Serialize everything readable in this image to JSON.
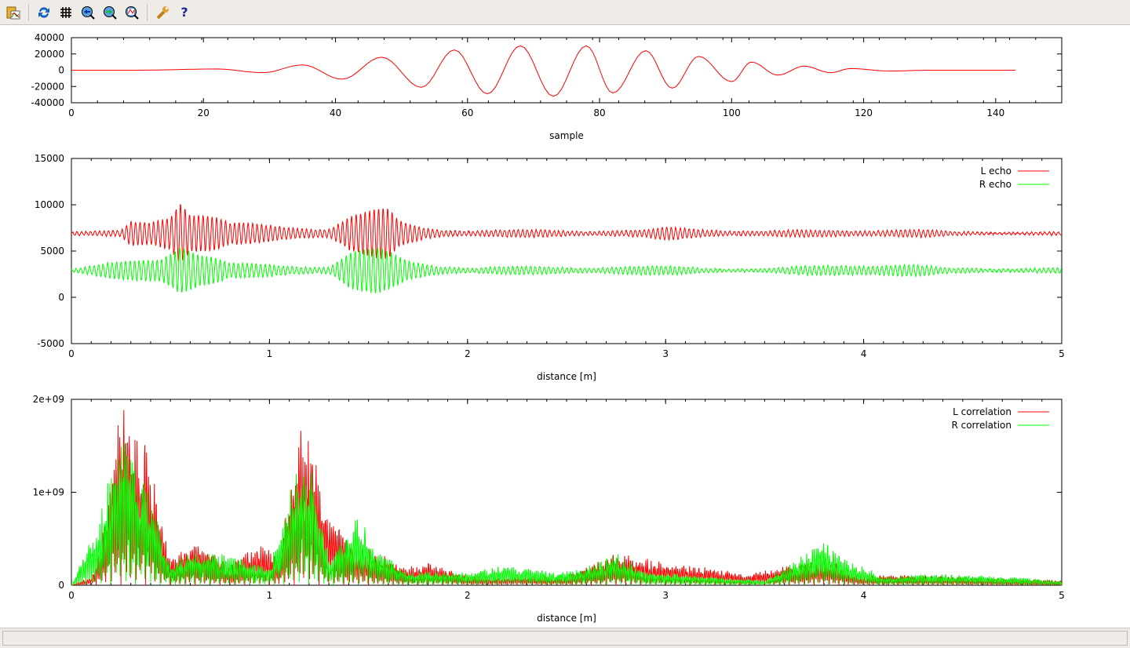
{
  "toolbar": {
    "icons": [
      "copy-to-clipboard-icon",
      "replot-icon",
      "grid-icon",
      "zoom-previous-icon",
      "zoom-next-icon",
      "autoscale-icon",
      "preferences-icon",
      "help-icon"
    ],
    "help_glyph": "?"
  },
  "colors": {
    "red": "#ff0000",
    "green": "#00ff00"
  },
  "chart_data": [
    {
      "type": "line",
      "xlabel": "sample",
      "ylabel": "",
      "xlim": [
        0,
        150
      ],
      "ylim": [
        -40000,
        40000
      ],
      "xticks": [
        "0",
        "20",
        "40",
        "60",
        "80",
        "100",
        "120",
        "140"
      ],
      "yticks": [
        "-40000",
        "-20000",
        "0",
        "20000",
        "40000"
      ],
      "series": [
        {
          "color": "#ff0000",
          "extrema": [
            [
              0,
              0
            ],
            [
              10,
              0
            ],
            [
              22,
              1500
            ],
            [
              29,
              -3000
            ],
            [
              35,
              6500
            ],
            [
              41,
              -11000
            ],
            [
              47,
              16000
            ],
            [
              53,
              -21000
            ],
            [
              58,
              25000
            ],
            [
              63,
              -29000
            ],
            [
              68,
              30000
            ],
            [
              73,
              -32000
            ],
            [
              78,
              30000
            ],
            [
              82,
              -28000
            ],
            [
              87,
              24000
            ],
            [
              91,
              -22000
            ],
            [
              95,
              17000
            ],
            [
              100,
              -14000
            ],
            [
              103,
              10000
            ],
            [
              107,
              -6000
            ],
            [
              111,
              5000
            ],
            [
              115,
              -3000
            ],
            [
              118,
              2000
            ],
            [
              124,
              -1000
            ],
            [
              130,
              0
            ],
            [
              143,
              0
            ]
          ]
        }
      ]
    },
    {
      "type": "line",
      "xlabel": "distance [m]",
      "ylabel": "",
      "xlim": [
        0,
        5
      ],
      "ylim": [
        -5000,
        15000
      ],
      "xticks": [
        "0",
        "1",
        "2",
        "3",
        "4",
        "5"
      ],
      "yticks": [
        "-5000",
        "0",
        "5000",
        "10000",
        "15000"
      ],
      "legend": "top-right",
      "series": [
        {
          "name": "L echo",
          "color": "#ff0000",
          "baseline": 6900,
          "envelope": [
            [
              0,
              200
            ],
            [
              0.25,
              300
            ],
            [
              0.3,
              1500
            ],
            [
              0.4,
              1800
            ],
            [
              0.5,
              3500
            ],
            [
              0.55,
              6500
            ],
            [
              0.6,
              3500
            ],
            [
              0.7,
              2500
            ],
            [
              0.8,
              1200
            ],
            [
              1.0,
              1000
            ],
            [
              1.3,
              800
            ],
            [
              1.4,
              2300
            ],
            [
              1.6,
              2800
            ],
            [
              1.65,
              1500
            ],
            [
              1.8,
              800
            ],
            [
              2.0,
              400
            ],
            [
              2.9,
              400
            ],
            [
              3.0,
              700
            ],
            [
              3.2,
              600
            ],
            [
              3.5,
              300
            ],
            [
              4.0,
              500
            ],
            [
              4.2,
              500
            ],
            [
              4.5,
              200
            ],
            [
              5,
              200
            ]
          ]
        },
        {
          "name": "R echo",
          "color": "#00ff00",
          "baseline": 2900,
          "envelope": [
            [
              0,
              150
            ],
            [
              0.3,
              1200
            ],
            [
              0.45,
              2000
            ],
            [
              0.55,
              5000
            ],
            [
              0.65,
              2500
            ],
            [
              0.8,
              800
            ],
            [
              1.3,
              600
            ],
            [
              1.4,
              2500
            ],
            [
              1.55,
              2500
            ],
            [
              1.7,
              1200
            ],
            [
              2.0,
              400
            ],
            [
              2.8,
              500
            ],
            [
              3.0,
              500
            ],
            [
              3.5,
              200
            ],
            [
              4.0,
              900
            ],
            [
              4.2,
              800
            ],
            [
              4.4,
              300
            ],
            [
              5,
              300
            ]
          ]
        }
      ]
    },
    {
      "type": "line",
      "xlabel": "distance [m]",
      "ylabel": "",
      "xlim": [
        0,
        5
      ],
      "ylim": [
        0,
        2000000000
      ],
      "xticks": [
        "0",
        "1",
        "2",
        "3",
        "4",
        "5"
      ],
      "yticks": [
        "0",
        "1e+09",
        "2e+09"
      ],
      "legend": "top-right",
      "series": [
        {
          "name": "L correlation",
          "color": "#ff0000",
          "envelope": [
            [
              0,
              0
            ],
            [
              0.1,
              100000000.0
            ],
            [
              0.15,
              500000000.0
            ],
            [
              0.22,
              1500000000.0
            ],
            [
              0.25,
              2000000000.0
            ],
            [
              0.3,
              2000000000.0
            ],
            [
              0.38,
              1500000000.0
            ],
            [
              0.45,
              800000000.0
            ],
            [
              0.5,
              300000000.0
            ],
            [
              0.6,
              500000000.0
            ],
            [
              0.7,
              400000000.0
            ],
            [
              0.8,
              200000000.0
            ],
            [
              0.95,
              500000000.0
            ],
            [
              1.05,
              300000000.0
            ],
            [
              1.15,
              1700000000.0
            ],
            [
              1.2,
              1700000000.0
            ],
            [
              1.3,
              800000000.0
            ],
            [
              1.4,
              500000000.0
            ],
            [
              1.5,
              400000000.0
            ],
            [
              1.7,
              200000000.0
            ],
            [
              1.8,
              250000000.0
            ],
            [
              2.0,
              100000000.0
            ],
            [
              2.5,
              100000000.0
            ],
            [
              2.75,
              350000000.0
            ],
            [
              3.0,
              250000000.0
            ],
            [
              3.2,
              200000000.0
            ],
            [
              3.4,
              120000000.0
            ],
            [
              3.8,
              300000000.0
            ],
            [
              4.0,
              100000000.0
            ],
            [
              4.1,
              120000000.0
            ],
            [
              5,
              50000000.0
            ]
          ]
        },
        {
          "name": "R correlation",
          "color": "#00ff00",
          "envelope": [
            [
              0,
              0
            ],
            [
              0.15,
              800000000.0
            ],
            [
              0.25,
              1800000000.0
            ],
            [
              0.32,
              1400000000.0
            ],
            [
              0.4,
              1000000000.0
            ],
            [
              0.5,
              200000000.0
            ],
            [
              0.6,
              400000000.0
            ],
            [
              0.85,
              300000000.0
            ],
            [
              1.0,
              200000000.0
            ],
            [
              1.15,
              1400000000.0
            ],
            [
              1.22,
              1200000000.0
            ],
            [
              1.3,
              300000000.0
            ],
            [
              1.45,
              750000000.0
            ],
            [
              1.55,
              400000000.0
            ],
            [
              1.7,
              150000000.0
            ],
            [
              2.0,
              150000000.0
            ],
            [
              2.2,
              220000000.0
            ],
            [
              2.45,
              150000000.0
            ],
            [
              2.6,
              200000000.0
            ],
            [
              2.75,
              350000000.0
            ],
            [
              2.9,
              150000000.0
            ],
            [
              3.5,
              50000000.0
            ],
            [
              3.8,
              500000000.0
            ],
            [
              3.9,
              300000000.0
            ],
            [
              4.1,
              100000000.0
            ],
            [
              4.3,
              120000000.0
            ],
            [
              4.55,
              120000000.0
            ],
            [
              5,
              50000000.0
            ]
          ]
        }
      ]
    }
  ]
}
